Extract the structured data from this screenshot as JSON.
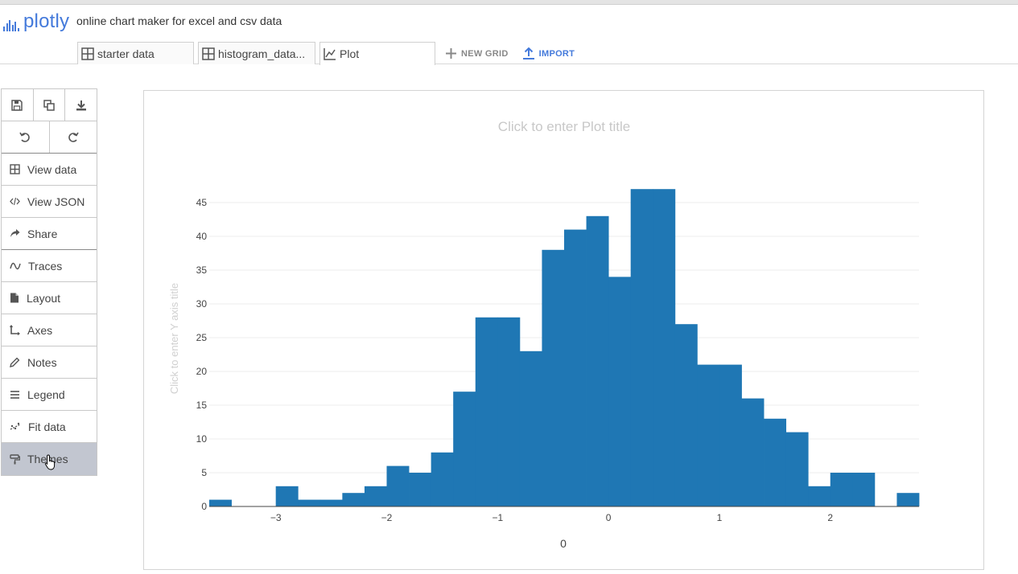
{
  "app": {
    "logo_text": "plotly",
    "tagline": "online chart maker for excel and csv data"
  },
  "tabs": [
    {
      "label": "starter data",
      "icon": "grid-icon"
    },
    {
      "label": "histogram_data...",
      "icon": "grid-icon"
    },
    {
      "label": "Plot",
      "icon": "line-chart-icon"
    }
  ],
  "actions": {
    "new_grid": "NEW GRID",
    "import": "IMPORT"
  },
  "toolbar": {
    "buttons": [
      "save-icon",
      "duplicate-icon",
      "download-icon",
      "undo-icon",
      "redo-icon"
    ]
  },
  "menu": {
    "view_data": "View data",
    "view_json": "View JSON",
    "share": "Share",
    "traces": "Traces",
    "layout": "Layout",
    "axes": "Axes",
    "notes": "Notes",
    "legend": "Legend",
    "fit_data": "Fit data",
    "themes": "Themes",
    "active": "Themes"
  },
  "colors": {
    "brand": "#447adb",
    "bar": "#1f77b4",
    "placeholder": "#c8c8c8",
    "active_menu": "#c2c6d0"
  },
  "chart_data": {
    "type": "bar",
    "subtype": "histogram",
    "title": "Click to enter Plot title",
    "xlabel": "0",
    "ylabel": "Click to enter Y axis title",
    "xlim": [
      -3.6,
      2.8
    ],
    "ylim": [
      0,
      47
    ],
    "xticks": [
      -3,
      -2,
      -1,
      0,
      1,
      2
    ],
    "xtick_labels": [
      "−3",
      "−2",
      "−1",
      "0",
      "1",
      "2"
    ],
    "yticks": [
      0,
      5,
      10,
      15,
      20,
      25,
      30,
      35,
      40,
      45
    ],
    "ytick_labels": [
      "0",
      "5",
      "10",
      "15",
      "20",
      "25",
      "30",
      "35",
      "40",
      "45"
    ],
    "grid": true,
    "bin_start": -3.6,
    "bin_size": 0.2,
    "counts": [
      1,
      0,
      0,
      3,
      1,
      1,
      2,
      3,
      6,
      5,
      8,
      17,
      28,
      28,
      23,
      38,
      41,
      43,
      34,
      47,
      47,
      27,
      21,
      21,
      16,
      13,
      11,
      3,
      5,
      5,
      0,
      2
    ]
  }
}
